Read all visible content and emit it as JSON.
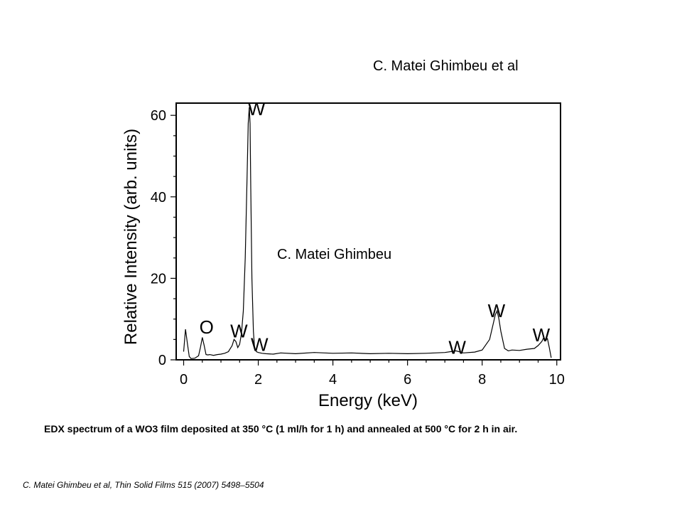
{
  "texts": {
    "author_top": "C. Matei Ghimbeu et al",
    "author_mid": "C. Matei Ghimbeu",
    "caption": "EDX spectrum of a WO3 film deposited at 350 °C (1 ml/h for 1 h) and annealed at 500 °C for 2 h in air.",
    "citation": "C. Matei Ghimbeu et al,  Thin Solid Films 515 (2007) 5498–5504"
  },
  "chart_data": {
    "type": "line",
    "title": "",
    "xlabel": "Energy (keV)",
    "ylabel": "Relative Intensity (arb. units)",
    "xlim": [
      -0.2,
      10.1
    ],
    "ylim": [
      0,
      63
    ],
    "xticks": [
      0,
      2,
      4,
      6,
      8,
      10
    ],
    "yticks": [
      0,
      20,
      40,
      60
    ],
    "grid": false,
    "series": [
      {
        "color": "#000000",
        "x": [
          0.0,
          0.05,
          0.1,
          0.15,
          0.2,
          0.3,
          0.4,
          0.45,
          0.5,
          0.55,
          0.6,
          0.65,
          0.7,
          0.8,
          0.9,
          1.0,
          1.1,
          1.2,
          1.3,
          1.35,
          1.4,
          1.45,
          1.5,
          1.55,
          1.6,
          1.65,
          1.7,
          1.73,
          1.76,
          1.78,
          1.8,
          1.83,
          1.87,
          1.9,
          1.95,
          2.0,
          2.1,
          2.2,
          2.4,
          2.6,
          3.0,
          3.5,
          4.0,
          4.5,
          5.0,
          5.5,
          6.0,
          6.5,
          7.0,
          7.3,
          7.5,
          7.8,
          8.0,
          8.2,
          8.3,
          8.35,
          8.4,
          8.45,
          8.5,
          8.6,
          8.7,
          8.8,
          9.0,
          9.2,
          9.4,
          9.5,
          9.6,
          9.65,
          9.7,
          9.75,
          9.8,
          9.85
        ],
        "y": [
          2,
          7.5,
          4,
          0.8,
          0.3,
          0.4,
          1,
          3,
          5.5,
          3.5,
          1.3,
          1.2,
          1.3,
          1.1,
          1.3,
          1.4,
          1.6,
          2,
          3.5,
          5,
          4.5,
          3,
          3.8,
          6.5,
          12,
          25,
          45,
          58,
          62,
          58,
          42,
          20,
          7,
          3,
          2,
          1.8,
          1.6,
          1.5,
          1.4,
          1.7,
          1.5,
          1.8,
          1.6,
          1.7,
          1.5,
          1.6,
          1.5,
          1.6,
          1.8,
          2.2,
          1.7,
          1.9,
          2.4,
          5,
          9,
          11,
          12,
          10,
          7,
          2.8,
          2.2,
          2.4,
          2.3,
          2.6,
          2.8,
          3.5,
          4.5,
          5.5,
          4.8,
          5.2,
          3,
          0.5
        ]
      }
    ],
    "annotations": [
      {
        "text": "W",
        "x": 1.72,
        "y": 60
      },
      {
        "text": "O",
        "x": 0.42,
        "y": 6.5
      },
      {
        "text": "W",
        "x": 1.25,
        "y": 5.5
      },
      {
        "text": "W",
        "x": 1.8,
        "y": 2.2
      },
      {
        "text": "W",
        "x": 8.15,
        "y": 10.5
      },
      {
        "text": "W",
        "x": 7.1,
        "y": 1.5
      },
      {
        "text": "W",
        "x": 9.35,
        "y": 4.5
      }
    ]
  }
}
